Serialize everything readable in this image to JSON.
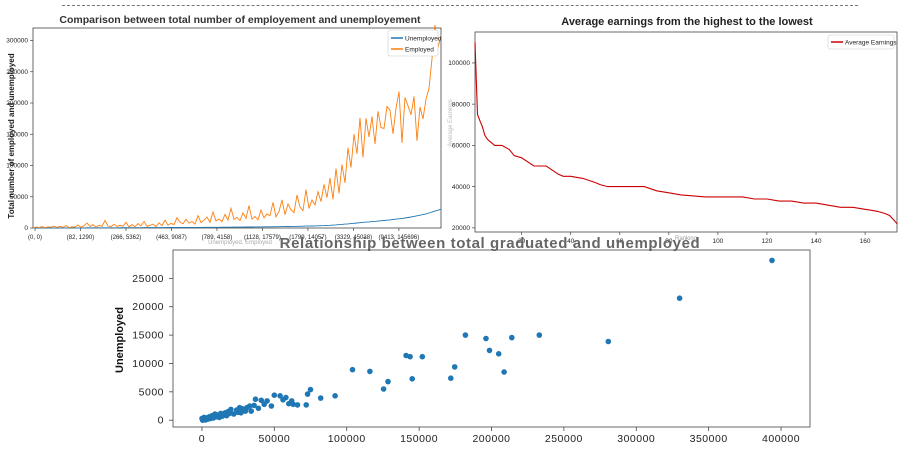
{
  "chart_data": [
    {
      "type": "line",
      "title": "Comparison between total number of employement and unemployement",
      "ylabel": "Total number of employed and unemployed",
      "xlabel": "Unemployed, Employed",
      "ylim": [
        0,
        320000
      ],
      "yticks": [
        0,
        50000,
        100000,
        150000,
        200000,
        250000,
        300000
      ],
      "xtick_labels": [
        "(0, 0)",
        "(82, 1290)",
        "(266, 5362)",
        "(463, 9087)",
        "(789, 4158)",
        "(1128, 17579)",
        "(1799, 14057)",
        "(3329, 45038)",
        "(9413, 145696)"
      ],
      "legend": "top-right",
      "grid": false,
      "series": [
        {
          "name": "Unemployed",
          "color": "#1f77b4",
          "values": [
            0,
            10,
            20,
            35,
            50,
            60,
            70,
            80,
            90,
            110,
            120,
            140,
            150,
            170,
            180,
            200,
            210,
            230,
            240,
            260,
            266,
            280,
            300,
            310,
            330,
            350,
            360,
            380,
            400,
            420,
            440,
            463,
            480,
            500,
            520,
            540,
            560,
            580,
            600,
            620,
            640,
            660,
            680,
            700,
            720,
            740,
            760,
            789,
            800,
            820,
            850,
            880,
            900,
            930,
            960,
            990,
            1020,
            1050,
            1080,
            1110,
            1128,
            1160,
            1200,
            1230,
            1260,
            1300,
            1340,
            1380,
            1420,
            1460,
            1500,
            1550,
            1600,
            1650,
            1700,
            1750,
            1799,
            1850,
            1900,
            1950,
            2000,
            2050,
            2100,
            2200,
            2300,
            2400,
            2500,
            2600,
            2700,
            2800,
            2900,
            3000,
            3100,
            3200,
            3329,
            3500,
            3700,
            3900,
            4100,
            4400,
            4700,
            5000,
            5400,
            5800,
            6200,
            6600,
            7000,
            7500,
            8000,
            8500,
            9000,
            9413,
            9800,
            10200,
            10600,
            11000,
            11500,
            12000,
            12500,
            13000,
            13600,
            14200,
            14800,
            15400,
            16000,
            16800,
            17600,
            18500,
            19500,
            20500,
            21500,
            22500,
            24000,
            25500,
            27000,
            28500,
            30000
          ]
        },
        {
          "name": "Employed",
          "color": "#ff7f0e",
          "values": [
            0,
            1500,
            800,
            2200,
            600,
            1800,
            1290,
            3000,
            900,
            2500,
            1200,
            4000,
            700,
            2000,
            1600,
            5000,
            1100,
            3500,
            8000,
            2400,
            5362,
            1500,
            4500,
            2800,
            12000,
            3200,
            1800,
            6000,
            2500,
            4200,
            3000,
            9087,
            1600,
            5500,
            2100,
            7000,
            3400,
            10500,
            2800,
            4158,
            6300,
            2200,
            8200,
            3900,
            12500,
            4700,
            7400,
            5600,
            16500,
            9300,
            6800,
            14100,
            7900,
            10400,
            6200,
            19800,
            8600,
            12300,
            17579,
            9200,
            25600,
            11300,
            14400,
            10200,
            21800,
            12600,
            31500,
            13700,
            16900,
            11800,
            24300,
            15300,
            35800,
            14057,
            18400,
            13100,
            28700,
            16300,
            22400,
            19700,
            41200,
            17800,
            26500,
            45038,
            21300,
            38600,
            29200,
            24600,
            52800,
            33400,
            27700,
            61500,
            31200,
            44800,
            36900,
            58200,
            42300,
            69700,
            48600,
            79800,
            45800,
            95200,
            55600,
            101500,
            72400,
            128400,
            96800,
            150300,
            118600,
            176400,
            112800,
            175500,
            145696,
            178300,
            134200,
            186700,
            160600,
            159300,
            194200,
            188600,
            150800,
            191600,
            218200,
            136300,
            208800,
            195500,
            181200,
            210600,
            139500,
            193800,
            174400,
            206300,
            223300,
            270800,
            325000,
            288600,
            307700
          ]
        }
      ]
    },
    {
      "type": "line",
      "title": "Average earnings from the highest to the lowest",
      "xlabel": "Ranking",
      "ylabel": "Average Earnings",
      "xlim": [
        1,
        173
      ],
      "ylim": [
        18000,
        115000
      ],
      "xticks": [
        20,
        40,
        60,
        80,
        100,
        120,
        140,
        160
      ],
      "yticks": [
        20000,
        40000,
        60000,
        80000,
        100000
      ],
      "legend": "top-right",
      "grid": false,
      "series": [
        {
          "name": "Average Earnings",
          "color": "#cc0000",
          "x": [
            1,
            2,
            3,
            4,
            5,
            6,
            7,
            8,
            9,
            10,
            12,
            15,
            17,
            20,
            25,
            26,
            30,
            35,
            37,
            40,
            45,
            50,
            52,
            55,
            60,
            65,
            70,
            75,
            80,
            85,
            90,
            95,
            100,
            105,
            110,
            115,
            120,
            125,
            130,
            135,
            140,
            145,
            150,
            155,
            160,
            163,
            165,
            168,
            170,
            172,
            173
          ],
          "values": [
            110000,
            75000,
            72000,
            69000,
            65000,
            63000,
            62000,
            61000,
            60000,
            60000,
            60000,
            58000,
            55000,
            54000,
            50000,
            50000,
            50000,
            46000,
            45000,
            45000,
            44000,
            42000,
            41000,
            40000,
            40000,
            40000,
            40000,
            38000,
            37000,
            36000,
            35500,
            35000,
            35000,
            35000,
            35000,
            34000,
            34000,
            33000,
            33000,
            32000,
            32000,
            31000,
            30000,
            30000,
            29000,
            28500,
            28000,
            27000,
            26000,
            23500,
            22000
          ]
        }
      ]
    },
    {
      "type": "scatter",
      "title": "Relationship between total graduated and unemployed",
      "ylabel": "Unemployed",
      "xlabel": "",
      "xlim": [
        -20000,
        420000
      ],
      "ylim": [
        -1200,
        30000
      ],
      "xticks": [
        0,
        50000,
        100000,
        150000,
        200000,
        250000,
        300000,
        350000,
        400000
      ],
      "yticks": [
        0,
        5000,
        10000,
        15000,
        20000,
        25000
      ],
      "grid": false,
      "color": "#1f77b4",
      "points": [
        [
          393735,
          28169
        ],
        [
          329927,
          21502
        ],
        [
          280709,
          13874
        ],
        [
          233000,
          15000
        ],
        [
          213996,
          14558
        ],
        [
          208700,
          8500
        ],
        [
          205000,
          11700
        ],
        [
          198600,
          12300
        ],
        [
          196200,
          14400
        ],
        [
          182000,
          15000
        ],
        [
          174600,
          9400
        ],
        [
          171900,
          7400
        ],
        [
          152200,
          11200
        ],
        [
          145200,
          7300
        ],
        [
          143800,
          11200
        ],
        [
          141000,
          11400
        ],
        [
          128500,
          6800
        ],
        [
          125500,
          5500
        ],
        [
          116000,
          8600
        ],
        [
          104000,
          8900
        ],
        [
          92000,
          4300
        ],
        [
          82000,
          3900
        ],
        [
          75000,
          5400
        ],
        [
          73000,
          4600
        ],
        [
          72000,
          2700
        ],
        [
          66000,
          2700
        ],
        [
          63000,
          2800
        ],
        [
          62000,
          3400
        ],
        [
          60000,
          2900
        ],
        [
          58000,
          4000
        ],
        [
          56000,
          3600
        ],
        [
          54000,
          4300
        ],
        [
          50000,
          4400
        ],
        [
          48000,
          2500
        ],
        [
          45000,
          3400
        ],
        [
          43000,
          2800
        ],
        [
          41000,
          3500
        ],
        [
          39000,
          2100
        ],
        [
          37000,
          3700
        ],
        [
          36000,
          2600
        ],
        [
          34000,
          1600
        ],
        [
          33000,
          2500
        ],
        [
          31000,
          2200
        ],
        [
          30000,
          1600
        ],
        [
          28000,
          2000
        ],
        [
          27000,
          1300
        ],
        [
          26000,
          2200
        ],
        [
          25000,
          1400
        ],
        [
          24000,
          1800
        ],
        [
          22000,
          1100
        ],
        [
          20000,
          1900
        ],
        [
          19000,
          1200
        ],
        [
          18000,
          1500
        ],
        [
          17000,
          800
        ],
        [
          16000,
          1300
        ],
        [
          15000,
          1000
        ],
        [
          14000,
          700
        ],
        [
          13000,
          1200
        ],
        [
          12000,
          500
        ],
        [
          11000,
          900
        ],
        [
          10000,
          600
        ],
        [
          9000,
          1100
        ],
        [
          8000,
          400
        ],
        [
          7000,
          800
        ],
        [
          6000,
          300
        ],
        [
          5000,
          600
        ],
        [
          4000,
          200
        ],
        [
          3000,
          400
        ],
        [
          2000,
          150
        ],
        [
          1000,
          100
        ],
        [
          500,
          0
        ],
        [
          0,
          300
        ],
        [
          1500,
          500
        ],
        [
          2500,
          50
        ],
        [
          3500,
          250
        ]
      ]
    }
  ]
}
